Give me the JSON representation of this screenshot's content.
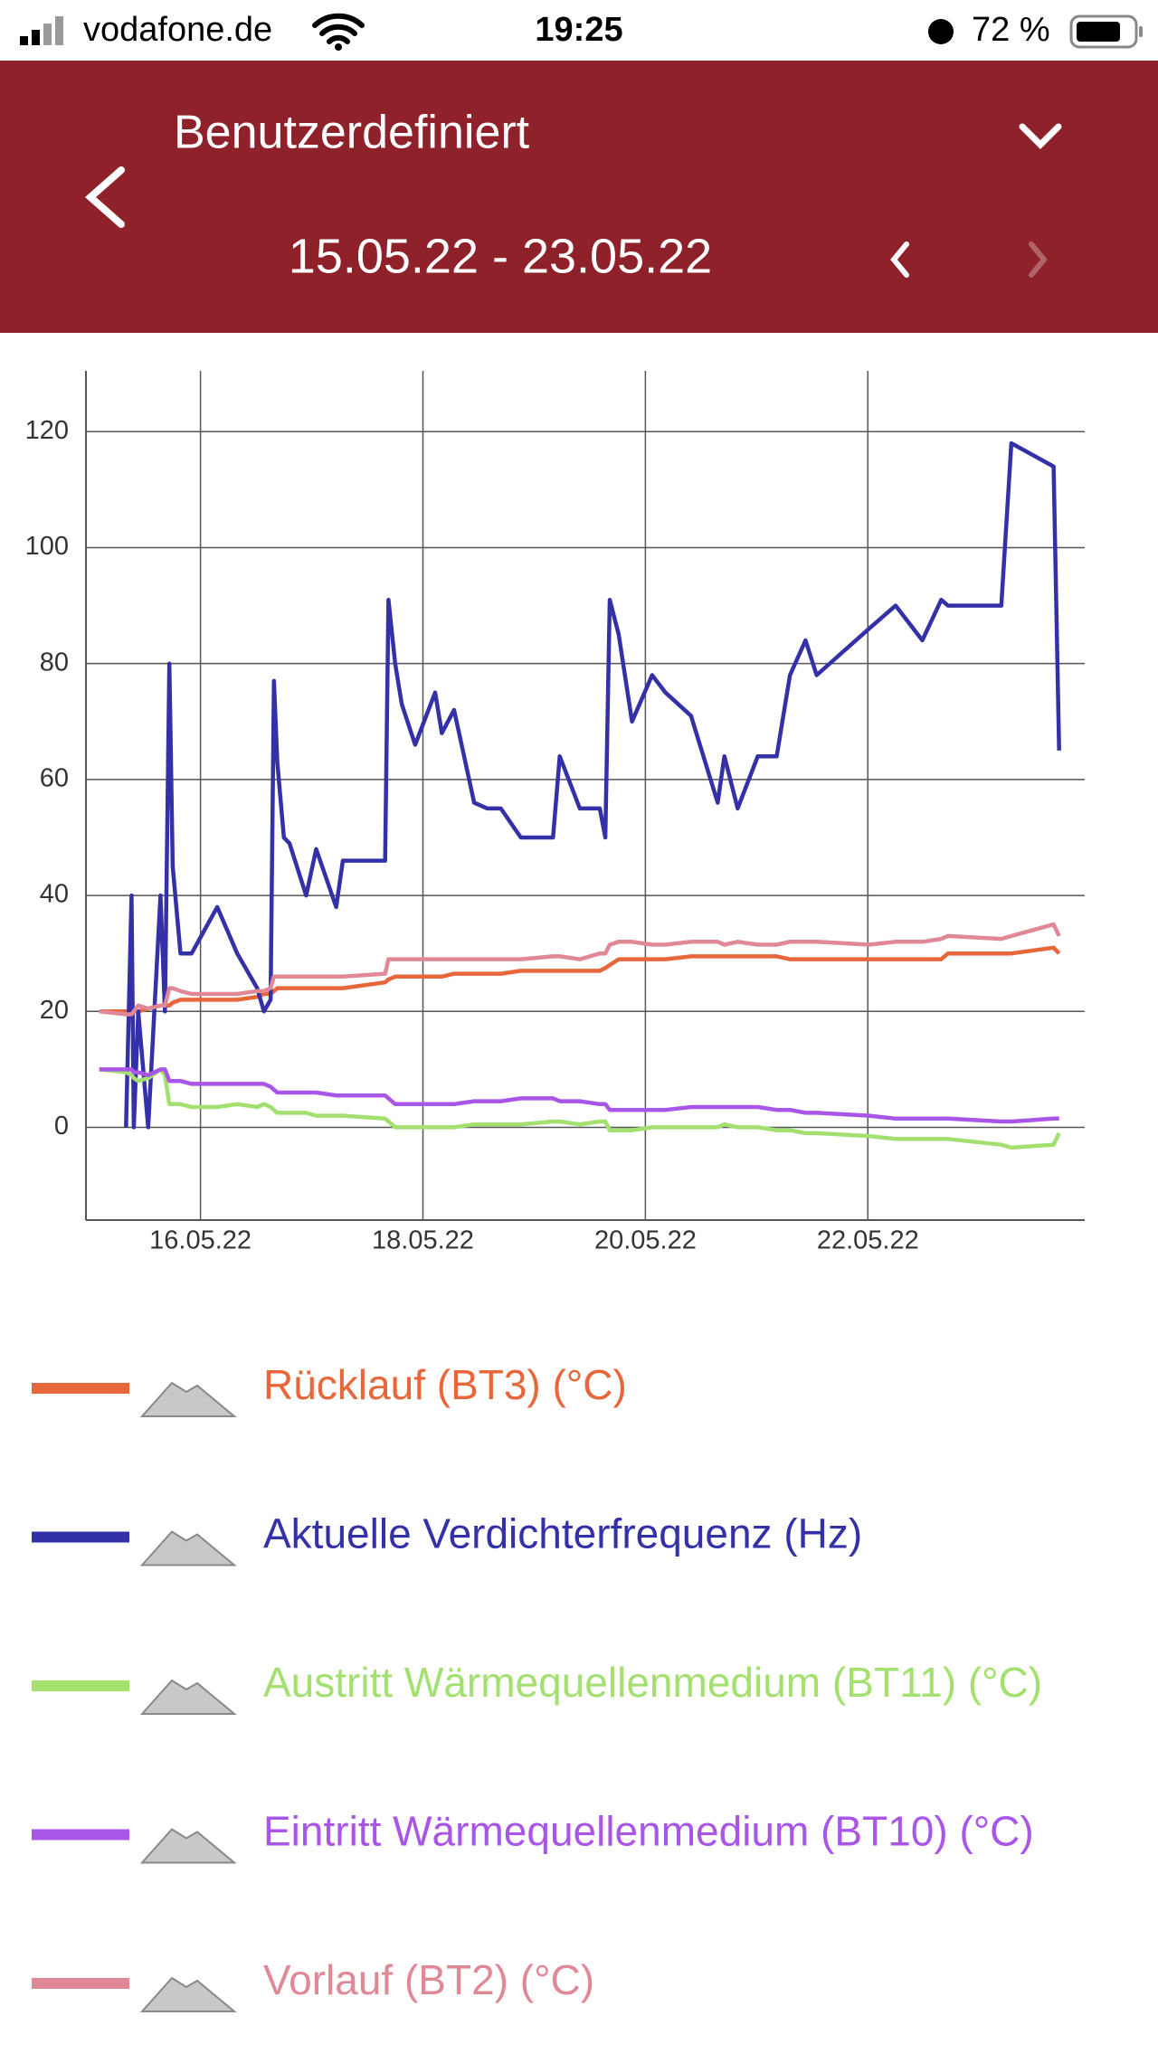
{
  "status_bar": {
    "carrier": "vodafone.de",
    "time": "19:25",
    "battery": "72 %"
  },
  "header": {
    "title": "Benutzerdefiniert",
    "range": "15.05.22 - 23.05.22"
  },
  "chart_data": {
    "type": "line",
    "x": [
      15.09,
      15.33,
      15.38,
      15.4,
      15.44,
      15.53,
      15.64,
      15.68,
      15.72,
      15.75,
      15.82,
      15.92,
      16.15,
      16.33,
      16.51,
      16.57,
      16.63,
      16.66,
      16.69,
      16.75,
      16.8,
      16.95,
      17.04,
      17.22,
      17.28,
      17.66,
      17.69,
      17.75,
      17.81,
      17.93,
      18.11,
      18.17,
      18.28,
      18.46,
      18.58,
      18.7,
      18.88,
      19.17,
      19.23,
      19.41,
      19.59,
      19.64,
      19.68,
      19.76,
      19.88,
      20.06,
      20.18,
      20.41,
      20.65,
      20.71,
      20.83,
      21.01,
      21.18,
      21.3,
      21.44,
      21.54,
      22.01,
      22.25,
      22.49,
      22.66,
      22.72,
      23.2,
      23.29,
      23.67,
      23.72
    ],
    "series": [
      {
        "name": "Rücklauf (BT3) (°C)",
        "color": "#e8673a",
        "values": [
          20,
          20,
          20,
          20,
          20,
          20.5,
          21,
          21,
          21,
          21.5,
          22,
          22,
          22,
          22,
          22.5,
          23,
          23,
          23.5,
          24,
          24,
          24,
          24,
          24,
          24,
          24,
          25,
          25.5,
          26,
          26,
          26,
          26,
          26,
          26.5,
          26.5,
          26.5,
          26.5,
          27,
          27,
          27,
          27,
          27,
          27.5,
          28,
          29,
          29,
          29,
          29,
          29.5,
          29.5,
          29.5,
          29.5,
          29.5,
          29.5,
          29,
          29,
          29,
          29,
          29,
          29,
          29,
          30,
          30,
          30,
          31,
          30
        ]
      },
      {
        "name": "Aktuelle Verdichterfrequenz (Hz)",
        "color": "#3430a8",
        "values": [
          null,
          0,
          40,
          0,
          20,
          0,
          40,
          20,
          80,
          45,
          30,
          30,
          38,
          30,
          24,
          20,
          22,
          77,
          63,
          50,
          49,
          40,
          48,
          38,
          46,
          46,
          91,
          80,
          73,
          66,
          75,
          68,
          72,
          56,
          55,
          55,
          50,
          50,
          64,
          55,
          55,
          50,
          91,
          85,
          70,
          78,
          75,
          71,
          56,
          64,
          55,
          64,
          64,
          78,
          84,
          78,
          86,
          90,
          84,
          91,
          90,
          90,
          118,
          114,
          65
        ]
      },
      {
        "name": "Austritt Wärmequellenmedium (BT11) (°C)",
        "color": "#a3e070",
        "values": [
          10,
          9.5,
          9,
          8.5,
          8,
          8.5,
          10,
          9,
          4,
          4,
          4,
          3.5,
          3.5,
          4,
          3.5,
          4,
          3.5,
          3,
          2.5,
          2.5,
          2.5,
          2.5,
          2,
          2,
          2,
          1.5,
          1,
          0,
          0,
          0,
          0,
          0,
          0,
          0.5,
          0.5,
          0.5,
          0.5,
          1,
          1,
          0.5,
          1,
          1,
          -0.5,
          -0.5,
          -0.5,
          0,
          0,
          0,
          0,
          0.5,
          0,
          0,
          -0.5,
          -0.5,
          -1,
          -1,
          -1.5,
          -2,
          -2,
          -2,
          -2,
          -3,
          -3.5,
          -3,
          -1
        ]
      },
      {
        "name": "Eintritt Wärmequellenmedium (BT10) (°C)",
        "color": "#a855e8",
        "values": [
          10,
          10,
          10,
          9.5,
          9.5,
          9,
          10,
          10,
          8,
          8,
          8,
          7.5,
          7.5,
          7.5,
          7.5,
          7.5,
          7,
          6.5,
          6,
          6,
          6,
          6,
          6,
          5.5,
          5.5,
          5.5,
          5,
          4,
          4,
          4,
          4,
          4,
          4,
          4.5,
          4.5,
          4.5,
          5,
          5,
          4.5,
          4.5,
          4,
          4,
          3,
          3,
          3,
          3,
          3,
          3.5,
          3.5,
          3.5,
          3.5,
          3.5,
          3,
          3,
          2.5,
          2.5,
          2,
          1.5,
          1.5,
          1.5,
          1.5,
          1,
          1,
          1.5,
          1.5
        ]
      },
      {
        "name": "Vorlauf (BT2) (°C)",
        "color": "#e08896",
        "values": [
          20,
          19.5,
          19.5,
          20,
          21,
          20.5,
          21,
          21,
          24,
          24,
          23.5,
          23,
          23,
          23,
          23.5,
          23.5,
          24,
          26,
          26,
          26,
          26,
          26,
          26,
          26,
          26,
          26.5,
          29,
          29,
          29,
          29,
          29,
          29,
          29,
          29,
          29,
          29,
          29,
          29.5,
          29.5,
          29,
          30,
          30,
          31.5,
          32,
          32,
          31.5,
          31.5,
          32,
          32,
          31.5,
          32,
          31.5,
          31.5,
          32,
          32,
          32,
          31.5,
          32,
          32,
          32.5,
          33,
          32.5,
          33,
          35,
          33
        ]
      }
    ],
    "xlim": [
      14.97,
      23.95
    ],
    "xticks": [
      {
        "value": 16,
        "label": "16.05.22"
      },
      {
        "value": 18,
        "label": "18.05.22"
      },
      {
        "value": 20,
        "label": "20.05.22"
      },
      {
        "value": 22,
        "label": "22.05.22"
      }
    ],
    "ylim": [
      -16,
      130.5
    ],
    "yticks": [
      0,
      20,
      40,
      60,
      80,
      100,
      120
    ],
    "grid": true
  }
}
